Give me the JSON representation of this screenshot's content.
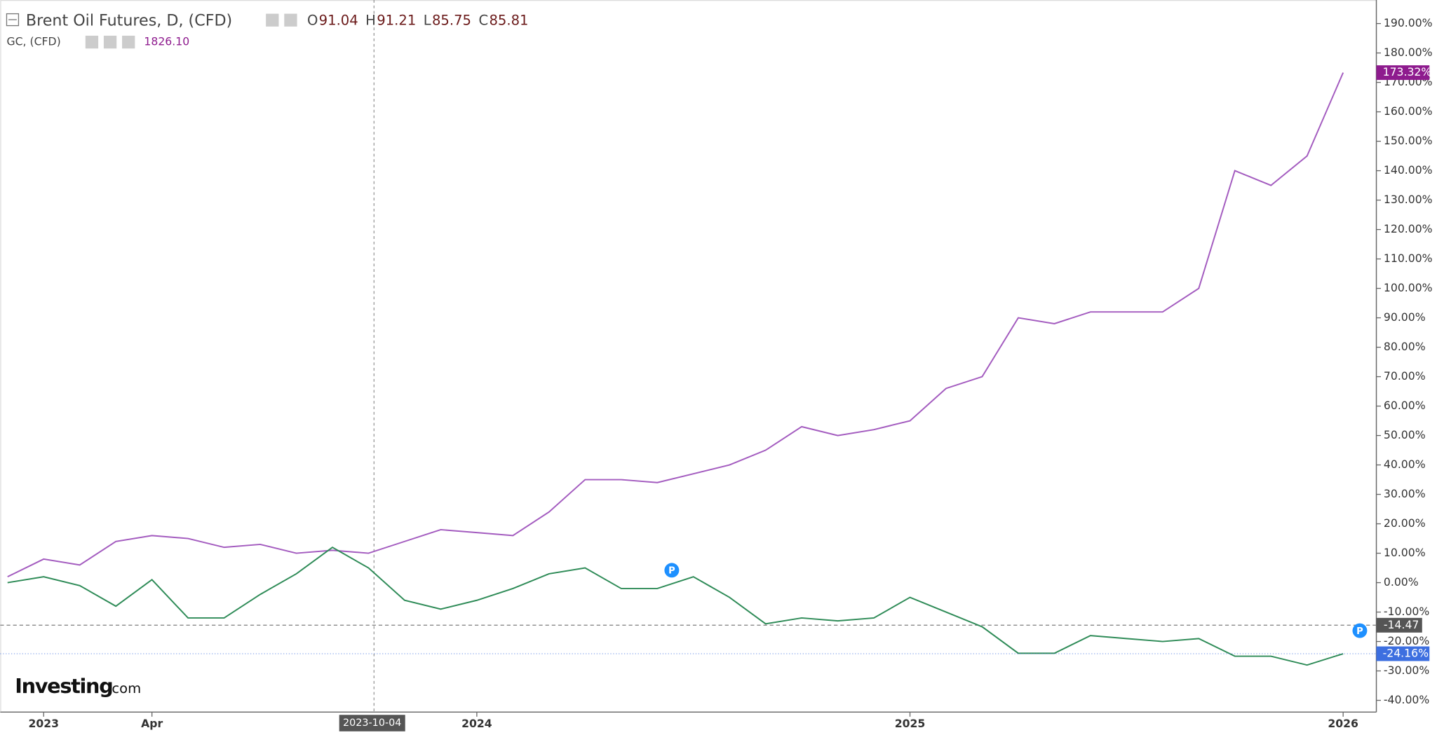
{
  "chart_data": {
    "type": "line",
    "header": {
      "title": "Brent Oil Futures, D, (CFD)",
      "ohlc": [
        {
          "key": "O",
          "value": "91.04"
        },
        {
          "key": "H",
          "value": "91.21"
        },
        {
          "key": "L",
          "value": "85.75"
        },
        {
          "key": "C",
          "value": "85.81"
        }
      ],
      "second_symbol": "GC, (CFD)",
      "second_value": "1826.10"
    },
    "logo": {
      "main": "Investing",
      "suffix": ".com"
    },
    "crosshair_label": "2023-10-04",
    "markers": [
      "P",
      "P"
    ],
    "categories": [
      null,
      "2023",
      null,
      null,
      "Apr",
      null,
      null,
      null,
      null,
      null,
      null,
      null,
      null,
      "2024",
      null,
      null,
      null,
      null,
      null,
      null,
      null,
      null,
      null,
      null,
      null,
      "2025",
      null,
      null,
      null,
      null,
      null,
      null,
      null,
      null,
      null,
      null,
      null,
      "2026"
    ],
    "series": [
      {
        "name": "GC, (CFD)",
        "color": "#a35bbf",
        "last_label": "173.32%",
        "label_color": "#8e1b8e",
        "values": [
          2,
          8,
          6,
          14,
          16,
          15,
          12,
          13,
          10,
          11,
          10,
          14,
          18,
          17,
          16,
          24,
          35,
          35,
          34,
          37,
          40,
          45,
          53,
          50,
          52,
          55,
          66,
          70,
          90,
          88,
          92,
          92,
          92,
          100,
          140,
          135,
          145,
          173.32
        ]
      },
      {
        "name": "Brent Oil Futures, D, (CFD)",
        "color": "#2e8b57",
        "last_label": "-24.16%",
        "label_color": "#3d6fe0",
        "values": [
          0,
          2,
          -1,
          -8,
          1,
          -12,
          -12,
          -4,
          3,
          12,
          5,
          -6,
          -9,
          -6,
          -2,
          3,
          5,
          -2,
          -2,
          2,
          -5,
          -14,
          -12,
          -13,
          -12,
          -5,
          -10,
          -15,
          -24,
          -24,
          -18,
          -19,
          -20,
          -19,
          -25,
          -25,
          -28,
          -24.16
        ]
      }
    ],
    "reference_lines": [
      {
        "value": -14.47,
        "label": "-14.47"
      }
    ],
    "ylim": [
      -44,
      198
    ],
    "yticks": [
      {
        "value": -40,
        "label": "-40.00%"
      },
      {
        "value": -30,
        "label": "-30.00%"
      },
      {
        "value": -20,
        "label": "-20.00%"
      },
      {
        "value": -10,
        "label": "-10.00%"
      },
      {
        "value": 0,
        "label": "0.00%"
      },
      {
        "value": 10,
        "label": "10.00%"
      },
      {
        "value": 20,
        "label": "20.00%"
      },
      {
        "value": 30,
        "label": "30.00%"
      },
      {
        "value": 40,
        "label": "40.00%"
      },
      {
        "value": 50,
        "label": "50.00%"
      },
      {
        "value": 60,
        "label": "60.00%"
      },
      {
        "value": 70,
        "label": "70.00%"
      },
      {
        "value": 80,
        "label": "80.00%"
      },
      {
        "value": 90,
        "label": "90.00%"
      },
      {
        "value": 100,
        "label": "100.00%"
      },
      {
        "value": 110,
        "label": "110.00%"
      },
      {
        "value": 120,
        "label": "120.00%"
      },
      {
        "value": 130,
        "label": "130.00%"
      },
      {
        "value": 140,
        "label": "140.00%"
      },
      {
        "value": 150,
        "label": "150.00%"
      },
      {
        "value": 160,
        "label": "160.00%"
      },
      {
        "value": 170,
        "label": "170.00%"
      },
      {
        "value": 180,
        "label": "180.00%"
      },
      {
        "value": 190,
        "label": "190.00%"
      }
    ]
  }
}
